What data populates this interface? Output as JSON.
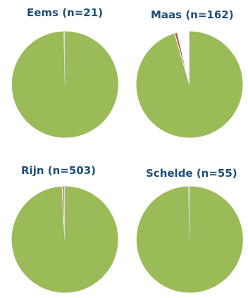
{
  "chart_data": [
    {
      "type": "pie",
      "title": "Eems (n=21)",
      "slices": [
        {
          "value": 99.8,
          "color": "#9bbb59"
        },
        {
          "value": 0.2,
          "color": "#a6a6a6"
        }
      ]
    },
    {
      "type": "pie",
      "title": "Maas (n=162)",
      "slices": [
        {
          "value": 95.5,
          "color": "#9bbb59"
        },
        {
          "value": 0.8,
          "color": "#c0504d"
        },
        {
          "value": 3.7,
          "color": "#ffffff"
        }
      ]
    },
    {
      "type": "pie",
      "title": "Rijn (n=503)",
      "slices": [
        {
          "value": 99.2,
          "color": "#9bbb59"
        },
        {
          "value": 0.6,
          "color": "#c0504d"
        },
        {
          "value": 0.2,
          "color": "#4f81bd"
        }
      ]
    },
    {
      "type": "pie",
      "title": "Schelde (n=55)",
      "slices": [
        {
          "value": 99.8,
          "color": "#9bbb59"
        },
        {
          "value": 0.2,
          "color": "#a6a6a6"
        }
      ]
    }
  ]
}
